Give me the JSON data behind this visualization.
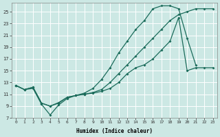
{
  "xlabel": "Humidex (Indice chaleur)",
  "bg_color": "#cce8e4",
  "line_color": "#1a6b5a",
  "xlim_min": -0.5,
  "xlim_max": 23.5,
  "ylim_min": 7,
  "ylim_max": 26.5,
  "yticks": [
    7,
    9,
    11,
    13,
    15,
    17,
    19,
    21,
    23,
    25
  ],
  "xticks": [
    0,
    1,
    2,
    3,
    4,
    5,
    6,
    7,
    8,
    9,
    10,
    11,
    12,
    13,
    14,
    15,
    16,
    17,
    18,
    19,
    20,
    21,
    22,
    23
  ],
  "line_top_x": [
    0,
    1,
    2,
    3,
    4,
    5,
    6,
    7,
    8,
    9,
    10,
    11,
    12,
    13,
    14,
    15,
    16,
    17,
    18,
    19,
    20,
    21,
    22,
    23
  ],
  "line_top_y": [
    12.5,
    11.8,
    12.2,
    9.5,
    9.0,
    9.6,
    10.5,
    10.8,
    11.0,
    11.3,
    11.8,
    13.0,
    14.5,
    16.0,
    17.5,
    19.0,
    20.5,
    22.0,
    23.5,
    24.5,
    25.0,
    25.5,
    25.5,
    25.5
  ],
  "line_mid_x": [
    0,
    1,
    2,
    3,
    4,
    5,
    6,
    7,
    8,
    9,
    10,
    11,
    12,
    13,
    14,
    15,
    16,
    17,
    18,
    19,
    20,
    21
  ],
  "line_mid_y": [
    12.5,
    11.8,
    12.0,
    9.3,
    7.5,
    9.2,
    10.3,
    10.8,
    11.2,
    12.0,
    13.5,
    15.5,
    18.0,
    20.0,
    22.0,
    23.5,
    25.5,
    26.0,
    26.0,
    25.5,
    20.5,
    16.0
  ],
  "line_bot_x": [
    0,
    1,
    2,
    3,
    4,
    5,
    6,
    7,
    8,
    9,
    10,
    11,
    12,
    13,
    14,
    15,
    16,
    17,
    18,
    19,
    20,
    21,
    22,
    23
  ],
  "line_bot_y": [
    12.5,
    11.8,
    12.2,
    9.5,
    9.0,
    9.5,
    10.5,
    10.8,
    11.0,
    11.2,
    11.5,
    12.0,
    13.0,
    14.5,
    15.5,
    16.0,
    17.0,
    18.5,
    20.0,
    24.0,
    15.0,
    15.5,
    15.5,
    15.5
  ]
}
